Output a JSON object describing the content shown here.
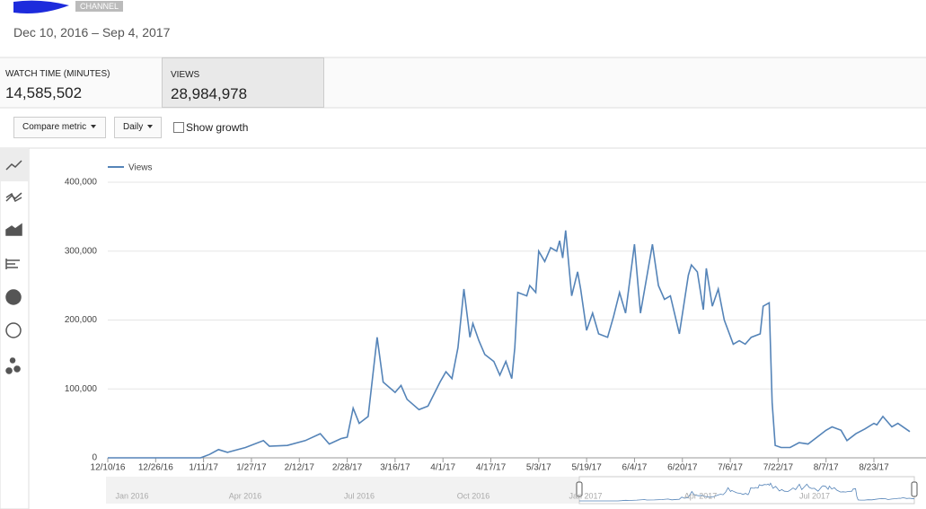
{
  "header": {
    "channel_badge": "CHANNEL",
    "date_range": "Dec 10, 2016 – Sep 4, 2017"
  },
  "metrics": [
    {
      "label": "WATCH TIME (MINUTES)",
      "value": "14,585,502"
    },
    {
      "label": "VIEWS",
      "value": "28,984,978"
    }
  ],
  "controls": {
    "compare": "Compare metric",
    "interval": "Daily",
    "growth": "Show growth"
  },
  "chart_data": {
    "type": "line",
    "x": [
      "12/10/16",
      "12/20/16",
      "12/30/16",
      "1/10/17",
      "1/13/17",
      "1/16/17",
      "1/19/17",
      "1/25/17",
      "1/31/17",
      "2/2/17",
      "2/8/17",
      "2/14/17",
      "2/19/17",
      "2/22/17",
      "2/26/17",
      "2/28/17",
      "3/2/17",
      "3/4/17",
      "3/7/17",
      "3/10/17",
      "3/12/17",
      "3/16/17",
      "3/18/17",
      "3/20/17",
      "3/24/17",
      "3/27/17",
      "3/31/17",
      "4/2/17",
      "4/4/17",
      "4/6/17",
      "4/8/17",
      "4/10/17",
      "4/11/17",
      "4/13/17",
      "4/15/17",
      "4/18/17",
      "4/20/17",
      "4/22/17",
      "4/24/17",
      "4/25/17",
      "4/26/17",
      "4/29/17",
      "4/30/17",
      "5/2/17",
      "5/3/17",
      "5/5/17",
      "5/7/17",
      "5/9/17",
      "5/10/17",
      "5/11/17",
      "5/12/17",
      "5/14/17",
      "5/16/17",
      "5/17/17",
      "5/19/17",
      "5/21/17",
      "5/23/17",
      "5/26/17",
      "5/28/17",
      "5/30/17",
      "6/1/17",
      "6/4/17",
      "6/6/17",
      "6/8/17",
      "6/10/17",
      "6/12/17",
      "6/14/17",
      "6/16/17",
      "6/19/17",
      "6/22/17",
      "6/23/17",
      "6/25/17",
      "6/27/17",
      "6/28/17",
      "6/30/17",
      "7/2/17",
      "7/4/17",
      "7/7/17",
      "7/9/17",
      "7/11/17",
      "7/13/17",
      "7/16/17",
      "7/17/17",
      "7/19/17",
      "7/20/17",
      "7/21/17",
      "7/23/17",
      "7/26/17",
      "7/29/17",
      "8/1/17",
      "8/4/17",
      "8/7/17",
      "8/9/17",
      "8/12/17",
      "8/14/17",
      "8/17/17",
      "8/20/17",
      "8/23/17",
      "8/24/17",
      "8/26/17",
      "8/29/17",
      "8/31/17",
      "9/4/17"
    ],
    "series": [
      {
        "name": "Views",
        "color": "#5584b8",
        "values": [
          0,
          0,
          0,
          0,
          5000,
          12000,
          8000,
          15000,
          25000,
          17000,
          18000,
          25000,
          35000,
          20000,
          28000,
          30000,
          72000,
          50000,
          60000,
          175000,
          110000,
          95000,
          105000,
          85000,
          70000,
          75000,
          110000,
          125000,
          115000,
          160000,
          245000,
          175000,
          195000,
          170000,
          150000,
          140000,
          120000,
          140000,
          115000,
          160000,
          240000,
          235000,
          250000,
          240000,
          300000,
          285000,
          305000,
          300000,
          315000,
          290000,
          330000,
          235000,
          270000,
          245000,
          185000,
          210000,
          180000,
          175000,
          205000,
          240000,
          210000,
          310000,
          210000,
          260000,
          310000,
          250000,
          230000,
          235000,
          180000,
          265000,
          280000,
          270000,
          215000,
          275000,
          220000,
          245000,
          200000,
          165000,
          170000,
          165000,
          175000,
          180000,
          220000,
          225000,
          80000,
          18000,
          15000,
          15000,
          22000,
          20000,
          30000,
          40000,
          45000,
          40000,
          25000,
          35000,
          42000,
          50000,
          48000,
          60000,
          45000,
          50000,
          38000
        ]
      }
    ],
    "xlim": [
      "12/10/16",
      "9/4/17"
    ],
    "xticks": [
      "12/10/16",
      "12/26/16",
      "1/11/17",
      "1/27/17",
      "2/12/17",
      "2/28/17",
      "3/16/17",
      "4/1/17",
      "4/17/17",
      "5/3/17",
      "5/19/17",
      "6/4/17",
      "6/20/17",
      "7/6/17",
      "7/22/17",
      "8/7/17",
      "8/23/17"
    ],
    "ylim": [
      0,
      400000
    ],
    "yticks": [
      0,
      {
        "value": 100000,
        "label": "100,000"
      },
      {
        "value": 200000,
        "label": "200,000"
      },
      {
        "value": 300000,
        "label": "300,000"
      },
      {
        "value": 400000,
        "label": "400,000"
      }
    ],
    "grid": true,
    "legend": "top-left"
  },
  "navigator": {
    "labels": [
      "Jan 2016",
      "Apr 2016",
      "Jul 2016",
      "Oct 2016",
      "Jan 2017",
      "Apr 2017",
      "Jul 2017"
    ]
  }
}
